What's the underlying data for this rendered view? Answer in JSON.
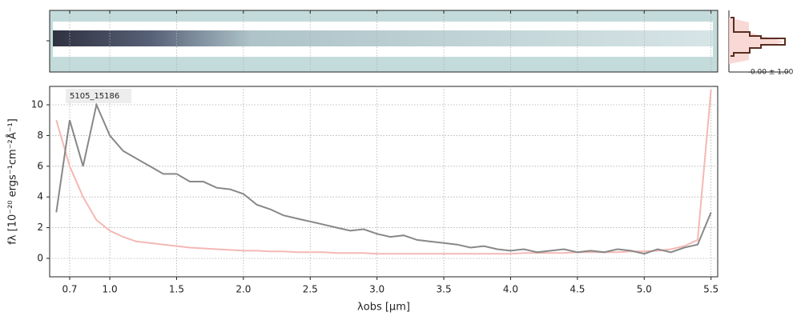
{
  "chart_data": {
    "type": "line",
    "xlabel": "λobs [μm]",
    "ylabel": "fλ [10⁻²⁰ ergs⁻¹cm⁻²Å⁻¹]",
    "label": "5105_15186",
    "noise_label": "-0.00 ± 1.00",
    "xlim": [
      0.55,
      5.55
    ],
    "ylim": [
      -1.2,
      11.2
    ],
    "xticks": [
      0.7,
      {
        "value": 1,
        "label": "1.0"
      },
      1.5,
      {
        "value": 2,
        "label": "2.0"
      },
      2.5,
      {
        "value": 3,
        "label": "3.0"
      },
      3.5,
      {
        "value": 4,
        "label": "4.0"
      },
      4.5,
      {
        "value": 5,
        "label": "5.0"
      },
      5.5
    ],
    "yticks": [
      0,
      2,
      4,
      6,
      8,
      10
    ],
    "grid": true,
    "x": [
      0.6,
      0.7,
      0.8,
      0.9,
      1.0,
      1.1,
      1.2,
      1.3,
      1.4,
      1.5,
      1.6,
      1.7,
      1.8,
      1.9,
      2.0,
      2.1,
      2.2,
      2.3,
      2.4,
      2.5,
      2.6,
      2.7,
      2.8,
      2.9,
      3.0,
      3.1,
      3.2,
      3.3,
      3.4,
      3.5,
      3.6,
      3.7,
      3.8,
      3.9,
      4.0,
      4.1,
      4.2,
      4.3,
      4.4,
      4.5,
      4.6,
      4.7,
      4.8,
      4.9,
      5.0,
      5.1,
      5.2,
      5.3,
      5.4,
      5.5
    ],
    "series": [
      {
        "color": "#f4b8b4",
        "values": [
          9,
          6,
          4,
          2.5,
          1.8,
          1.4,
          1.1,
          1.0,
          0.9,
          0.8,
          0.7,
          0.65,
          0.6,
          0.55,
          0.5,
          0.5,
          0.45,
          0.45,
          0.4,
          0.4,
          0.4,
          0.35,
          0.35,
          0.35,
          0.3,
          0.3,
          0.3,
          0.3,
          0.3,
          0.3,
          0.3,
          0.3,
          0.3,
          0.3,
          0.3,
          0.35,
          0.35,
          0.35,
          0.35,
          0.4,
          0.4,
          0.4,
          0.4,
          0.45,
          0.45,
          0.5,
          0.6,
          0.8,
          1.2,
          11
        ]
      },
      {
        "color": "#888888",
        "values": [
          3,
          9,
          6,
          10,
          8,
          7,
          6.5,
          6,
          5.5,
          5.5,
          5,
          5,
          4.6,
          4.5,
          4.2,
          3.5,
          3.2,
          2.8,
          2.6,
          2.4,
          2.2,
          2.0,
          1.8,
          1.9,
          1.6,
          1.4,
          1.5,
          1.2,
          1.1,
          1.0,
          0.9,
          0.7,
          0.8,
          0.6,
          0.5,
          0.6,
          0.4,
          0.5,
          0.6,
          0.4,
          0.5,
          0.4,
          0.6,
          0.5,
          0.3,
          0.6,
          0.4,
          0.7,
          0.9,
          3.0
        ]
      }
    ]
  }
}
